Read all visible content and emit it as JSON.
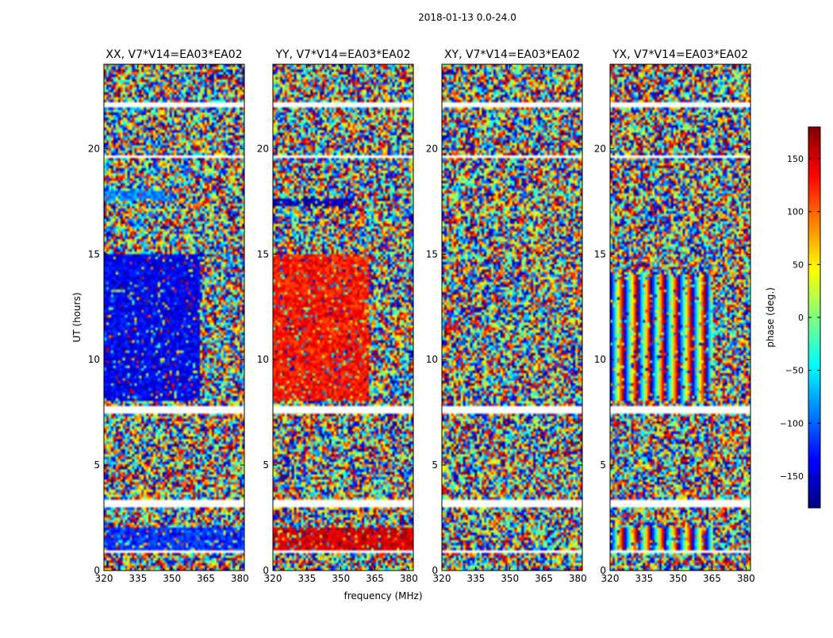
{
  "figure_title": "2018-01-13 0.0-24.0",
  "chart_data": {
    "type": "heatmap",
    "title": "2018-01-13 0.0-24.0",
    "xlabel": "frequency (MHz)",
    "ylabel": "UT (hours)",
    "xlim": [
      320,
      382
    ],
    "ylim": [
      0,
      24
    ],
    "xticks": [
      320,
      335,
      350,
      365,
      380
    ],
    "yticks": [
      0,
      5,
      10,
      15,
      20
    ],
    "colorbar": {
      "label": "phase (deg.)",
      "range": [
        -180,
        180
      ],
      "ticks": [
        -150,
        -100,
        -50,
        0,
        50,
        100,
        150
      ],
      "tick_labels": [
        "−150",
        "−100",
        "−50",
        "0",
        "50",
        "100",
        "150"
      ],
      "colormap": "jet",
      "colors": [
        "#00007f",
        "#0000ff",
        "#007fff",
        "#00ffff",
        "#7fff7f",
        "#ffff00",
        "#ff7f00",
        "#ff0000",
        "#7f0000"
      ]
    },
    "panels": [
      {
        "title": "XX, V7*V14=EA03*EA02",
        "pol": "XX",
        "baseline": "V7*V14=EA03*EA02"
      },
      {
        "title": "YY, V7*V14=EA03*EA02",
        "pol": "YY",
        "baseline": "V7*V14=EA03*EA02"
      },
      {
        "title": "XY, V7*V14=EA03*EA02",
        "pol": "XY",
        "baseline": "V7*V14=EA03*EA02"
      },
      {
        "title": "YX, V7*V14=EA03*EA02",
        "pol": "YX",
        "baseline": "V7*V14=EA03*EA02"
      }
    ],
    "flagged_time_ranges_hours": [
      [
        0.85,
        0.95
      ],
      [
        3.05,
        3.35
      ],
      [
        7.45,
        7.75
      ],
      [
        19.55,
        19.65
      ],
      [
        21.95,
        22.15
      ]
    ],
    "coherent_features": [
      {
        "panel": "XX",
        "t_range": [
          8.0,
          15.0
        ],
        "f_range": [
          320,
          362
        ],
        "phase_deg": -140
      },
      {
        "panel": "XX",
        "t_range": [
          17.5,
          18.0
        ],
        "f_range": [
          320,
          350
        ],
        "phase_deg": -90
      },
      {
        "panel": "XX",
        "t_range": [
          0.8,
          2.0
        ],
        "f_range": [
          320,
          382
        ],
        "phase_deg": -120
      },
      {
        "panel": "YY",
        "t_range": [
          8.0,
          15.0
        ],
        "f_range": [
          320,
          362
        ],
        "phase_deg": 130
      },
      {
        "panel": "YY",
        "t_range": [
          17.3,
          17.6
        ],
        "f_range": [
          320,
          355
        ],
        "phase_deg": -160
      },
      {
        "panel": "YY",
        "t_range": [
          1.0,
          2.0
        ],
        "f_range": [
          320,
          382
        ],
        "phase_deg": 150
      },
      {
        "panel": "YX",
        "t_range": [
          8.0,
          14.0
        ],
        "f_range": [
          320,
          365
        ],
        "pattern": "phase fringes ~6 MHz period"
      },
      {
        "panel": "YX",
        "t_range": [
          1.0,
          2.0
        ],
        "f_range": [
          320,
          365
        ],
        "pattern": "phase fringes ~6 MHz period"
      }
    ]
  }
}
